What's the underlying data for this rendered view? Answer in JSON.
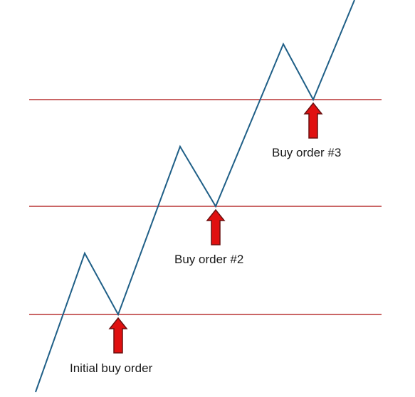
{
  "labels": {
    "initial": "Initial buy order",
    "order2": "Buy order #2",
    "order3": "Buy order #3"
  },
  "colors": {
    "price_path": "#1f5f87",
    "level_lines": "#b83333",
    "arrow_fill": "#e01010",
    "arrow_stroke": "#6a1010"
  },
  "icons": {
    "arrows": "up-arrow-icon"
  }
}
